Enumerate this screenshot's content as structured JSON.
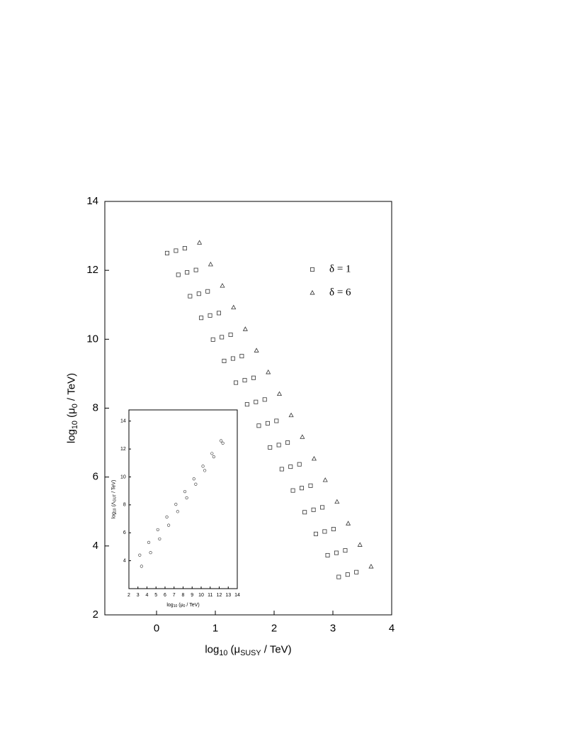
{
  "chart_data": [
    {
      "type": "scatter",
      "xlabel": [
        "log",
        "10",
        " (μ",
        "SUSY",
        " / TeV)"
      ],
      "ylabel": [
        "log",
        "10",
        " (μ",
        "0",
        " / TeV)"
      ],
      "xlim": [
        -0.88,
        4
      ],
      "ylim": [
        2,
        14
      ],
      "xticks": [
        0,
        1,
        2,
        3,
        4
      ],
      "yticks": [
        2,
        4,
        6,
        8,
        10,
        12,
        14
      ],
      "legend": "upper right",
      "series": [
        {
          "name": "δ = 1",
          "marker": "square",
          "color": "#333333",
          "x": [
            0.18,
            0.33,
            0.48,
            0.37,
            0.52,
            0.67,
            0.57,
            0.72,
            0.87,
            0.76,
            0.91,
            1.06,
            0.96,
            1.11,
            1.26,
            1.15,
            1.3,
            1.45,
            1.35,
            1.5,
            1.65,
            1.54,
            1.69,
            1.84,
            1.74,
            1.89,
            2.04,
            1.93,
            2.08,
            2.23,
            2.13,
            2.28,
            2.43,
            2.32,
            2.47,
            2.62,
            2.52,
            2.67,
            2.82,
            2.71,
            2.86,
            3.01,
            2.91,
            3.06,
            3.21,
            3.1,
            3.25,
            3.4
          ],
          "values": [
            12.5,
            12.57,
            12.64,
            11.87,
            11.94,
            12.01,
            11.25,
            11.32,
            11.39,
            10.62,
            10.69,
            10.76,
            9.99,
            10.06,
            10.13,
            9.37,
            9.44,
            9.51,
            8.74,
            8.81,
            8.88,
            8.11,
            8.18,
            8.25,
            7.49,
            7.56,
            7.63,
            6.86,
            6.93,
            7.0,
            6.23,
            6.3,
            6.37,
            5.61,
            5.68,
            5.75,
            4.98,
            5.05,
            5.12,
            4.35,
            4.42,
            4.49,
            3.73,
            3.8,
            3.87,
            3.1,
            3.17,
            3.24
          ]
        },
        {
          "name": "δ = 6",
          "marker": "triangle",
          "color": "#333333",
          "x": [
            0.73,
            0.92,
            1.12,
            1.31,
            1.51,
            1.7,
            1.9,
            2.09,
            2.29,
            2.48,
            2.68,
            2.87,
            3.07,
            3.26,
            3.46,
            3.65
          ],
          "values": [
            12.8,
            12.17,
            11.55,
            10.92,
            10.29,
            9.67,
            9.04,
            8.41,
            7.79,
            7.16,
            6.53,
            5.91,
            5.28,
            4.65,
            4.03,
            3.4
          ]
        }
      ]
    },
    {
      "type": "scatter",
      "xlabel": [
        "log",
        "10",
        " (μ",
        "0",
        " / TeV)"
      ],
      "ylabel": [
        "log",
        "10",
        " (Λ",
        "GUT",
        " / TeV)"
      ],
      "xlim": [
        2,
        14
      ],
      "ylim": [
        2,
        14.8
      ],
      "xticks": [
        2,
        3,
        4,
        5,
        6,
        7,
        8,
        9,
        10,
        11,
        12,
        13,
        14
      ],
      "yticks": [
        4,
        6,
        8,
        10,
        12,
        14
      ],
      "series": [
        {
          "marker": "circle",
          "color": "#333333",
          "x": [
            3.2,
            4.2,
            5.2,
            6.2,
            7.2,
            8.2,
            9.2,
            10.2,
            11.2,
            12.2
          ],
          "values": [
            4.4,
            5.31,
            6.22,
            7.13,
            8.04,
            8.95,
            9.86,
            10.77,
            11.68,
            12.59
          ]
        },
        {
          "marker": "circle",
          "color": "#333333",
          "x": [
            3.4,
            4.4,
            5.4,
            6.4,
            7.4,
            8.4,
            9.4,
            10.4,
            11.4,
            12.4
          ],
          "values": [
            3.6,
            4.58,
            5.56,
            6.54,
            7.52,
            8.5,
            9.48,
            10.46,
            11.44,
            12.42
          ]
        }
      ]
    }
  ]
}
